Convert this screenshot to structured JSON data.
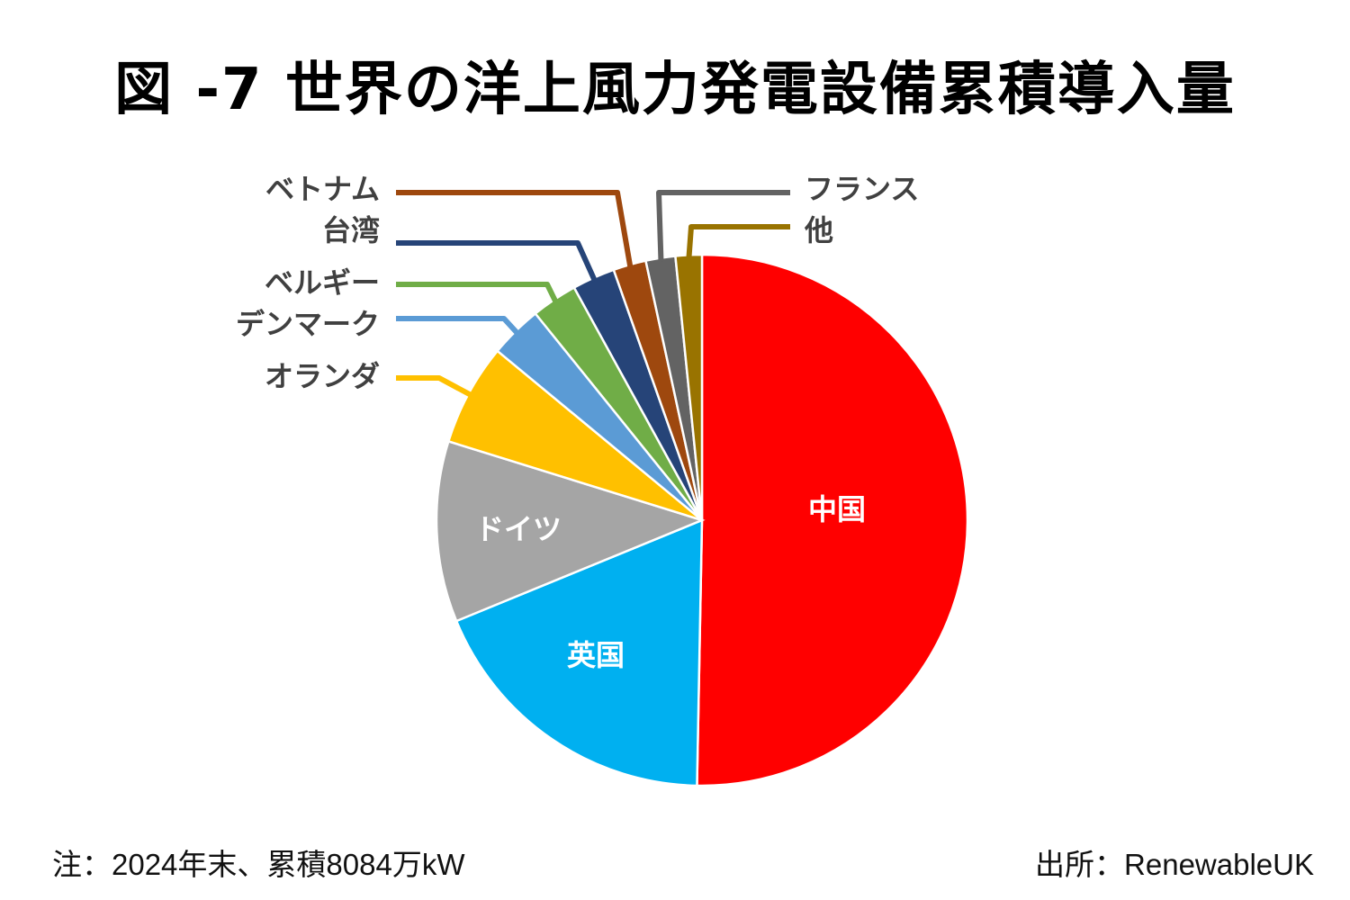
{
  "title": "図 -7 世界の洋上風力発電設備累積導入量",
  "note": "注：2024年末、累積8084万kW",
  "source": "出所：RenewableUK",
  "chart_data": {
    "type": "pie",
    "title": "図 -7 世界の洋上風力発電設備累積導入量",
    "unit": "share of cumulative capacity (%)",
    "start_angle": "12 o'clock, clockwise",
    "slices": [
      {
        "label": "中国",
        "value": 50.3,
        "color": "#FF0000",
        "label_style": "inside-white"
      },
      {
        "label": "英国",
        "value": 18.5,
        "color": "#00B0F0",
        "label_style": "inside-white"
      },
      {
        "label": "ドイツ",
        "value": 11.0,
        "color": "#A5A5A5",
        "label_style": "inside-white"
      },
      {
        "label": "オランダ",
        "value": 6.2,
        "color": "#FFC000",
        "label_style": "leader"
      },
      {
        "label": "デンマーク",
        "value": 3.2,
        "color": "#5B9BD5",
        "label_style": "leader"
      },
      {
        "label": "ベルギー",
        "value": 2.8,
        "color": "#70AD47",
        "label_style": "leader"
      },
      {
        "label": "台湾",
        "value": 2.6,
        "color": "#264478",
        "label_style": "leader"
      },
      {
        "label": "ベトナム",
        "value": 2.0,
        "color": "#9E480E",
        "label_style": "leader"
      },
      {
        "label": "フランス",
        "value": 1.8,
        "color": "#636363",
        "label_style": "leader"
      },
      {
        "label": "他",
        "value": 1.6,
        "color": "#997300",
        "label_style": "leader"
      }
    ]
  }
}
